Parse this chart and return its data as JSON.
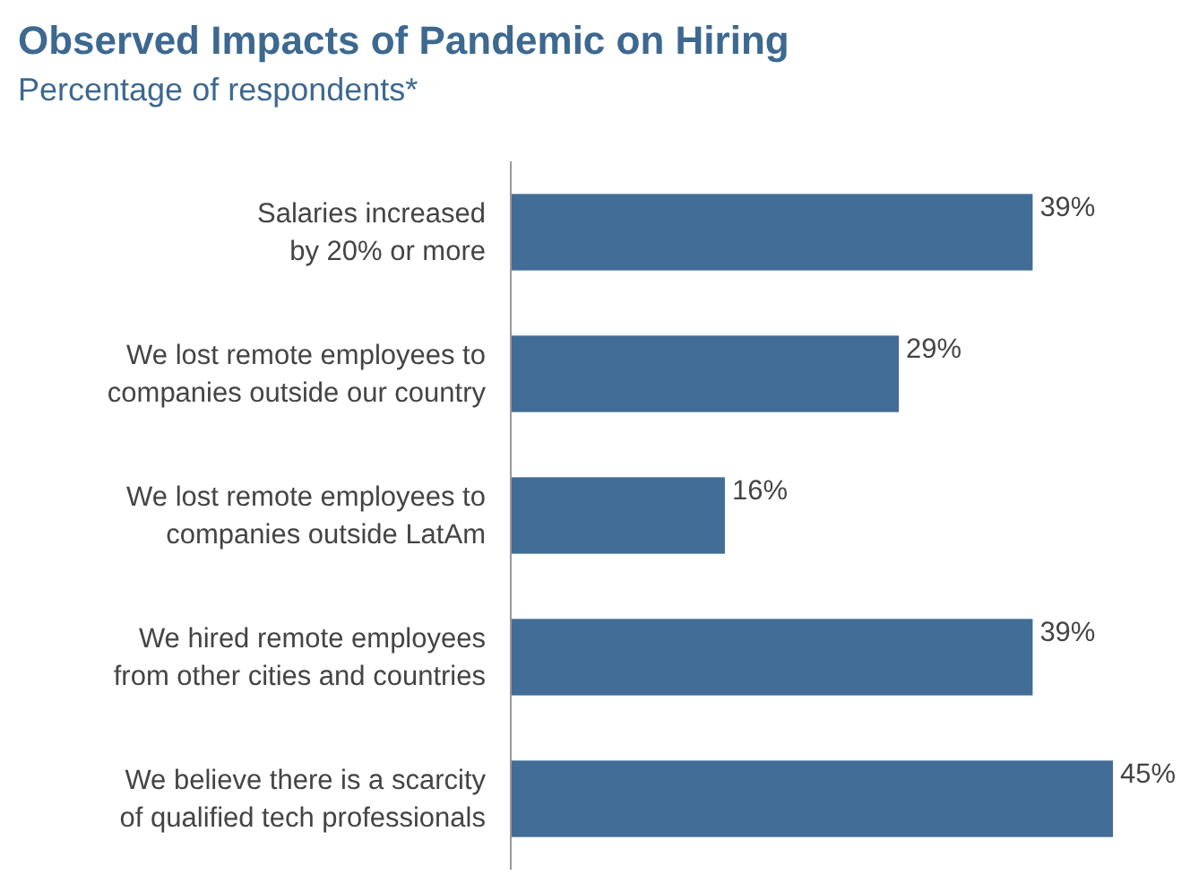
{
  "chart_data": {
    "type": "bar",
    "orientation": "horizontal",
    "title": "Observed Impacts of Pandemic on Hiring",
    "subtitle": "Percentage of respondents*",
    "categories": [
      "Salaries increased\nby 20% or more",
      "We lost remote employees to\ncompanies outside our country",
      "We lost remote employees to\ncompanies outside LatAm",
      "We hired remote employees\nfrom other cities and countries",
      "We believe there is a scarcity\nof qualified tech professionals"
    ],
    "values": [
      39,
      29,
      16,
      39,
      45
    ],
    "color": "#416d97",
    "value_labels": [
      "39%",
      "29%",
      "16%",
      "39%",
      "45%"
    ]
  }
}
